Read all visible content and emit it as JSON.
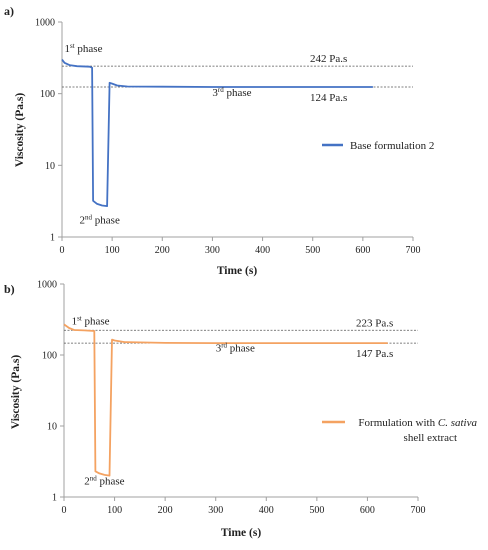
{
  "chart_data": [
    {
      "panel_label": "a)",
      "type": "line",
      "scale_y": "log",
      "xlabel": "Time (s)",
      "ylabel": "Viscosity (Pa.s)",
      "xlim": [
        0,
        700
      ],
      "ylim": [
        1,
        1000
      ],
      "x_ticks": [
        "0",
        "100",
        "200",
        "300",
        "400",
        "500",
        "600",
        "700"
      ],
      "y_ticks": [
        "1",
        "10",
        "100",
        "1000"
      ],
      "legend_position": "right",
      "series": [
        {
          "name": "Base formulation 2",
          "color": "#4472c4",
          "points": [
            [
              0,
              300
            ],
            [
              5,
              270
            ],
            [
              15,
              250
            ],
            [
              30,
              242
            ],
            [
              55,
              238
            ],
            [
              60,
              230
            ],
            [
              62,
              3.2
            ],
            [
              70,
              2.9
            ],
            [
              80,
              2.75
            ],
            [
              90,
              2.7
            ],
            [
              95,
              142
            ],
            [
              100,
              138
            ],
            [
              110,
              130
            ],
            [
              130,
              126
            ],
            [
              200,
              125
            ],
            [
              300,
              124
            ],
            [
              400,
              124
            ],
            [
              500,
              124
            ],
            [
              560,
              124
            ],
            [
              600,
              124
            ],
            [
              620,
              124
            ]
          ]
        }
      ],
      "ref_lines": [
        {
          "value": 242,
          "label": "242 Pa.s"
        },
        {
          "value": 124,
          "label": "124 Pa.s"
        }
      ],
      "annotations": [
        {
          "text": "1st phase",
          "base": "1",
          "sup": "st",
          "rest": " phase",
          "x": 5,
          "y": 380
        },
        {
          "text": "2nd phase",
          "base": "2",
          "sup": "nd",
          "rest": " phase",
          "x": 35,
          "y": 1.55
        },
        {
          "text": "3rd phase",
          "base": "3",
          "sup": "rd",
          "rest": " phase",
          "x": 300,
          "y": 93
        }
      ]
    },
    {
      "panel_label": "b)",
      "type": "line",
      "scale_y": "log",
      "xlabel": "Time (s)",
      "ylabel": "Viscosity (Pa.s)",
      "xlim": [
        0,
        700
      ],
      "ylim": [
        1,
        1000
      ],
      "x_ticks": [
        "0",
        "100",
        "200",
        "300",
        "400",
        "500",
        "600",
        "700"
      ],
      "y_ticks": [
        "1",
        "10",
        "100",
        "1000"
      ],
      "legend_position": "right",
      "series": [
        {
          "name": "Formulation with C. sativa shell extract",
          "color": "#f4a261",
          "points": [
            [
              0,
              270
            ],
            [
              10,
              240
            ],
            [
              20,
              225
            ],
            [
              40,
              222
            ],
            [
              60,
              218
            ],
            [
              62,
              2.3
            ],
            [
              70,
              2.15
            ],
            [
              80,
              2.05
            ],
            [
              90,
              2.0
            ],
            [
              95,
              165
            ],
            [
              100,
              160
            ],
            [
              120,
              152
            ],
            [
              200,
              148
            ],
            [
              300,
              147
            ],
            [
              400,
              147
            ],
            [
              500,
              147
            ],
            [
              600,
              147
            ],
            [
              640,
              147
            ]
          ]
        }
      ],
      "ref_lines": [
        {
          "value": 223,
          "label": "223 Pa.s"
        },
        {
          "value": 147,
          "label": "147 Pa.s"
        }
      ],
      "annotations": [
        {
          "text": "1st phase",
          "base": "1",
          "sup": "st",
          "rest": " phase",
          "x": 15,
          "y": 270
        },
        {
          "text": "2nd phase",
          "base": "2",
          "sup": "nd",
          "rest": " phase",
          "x": 40,
          "y": 1.5
        },
        {
          "text": "3rd phase",
          "base": "3",
          "sup": "rd",
          "rest": " phase",
          "x": 300,
          "y": 112
        }
      ]
    }
  ]
}
